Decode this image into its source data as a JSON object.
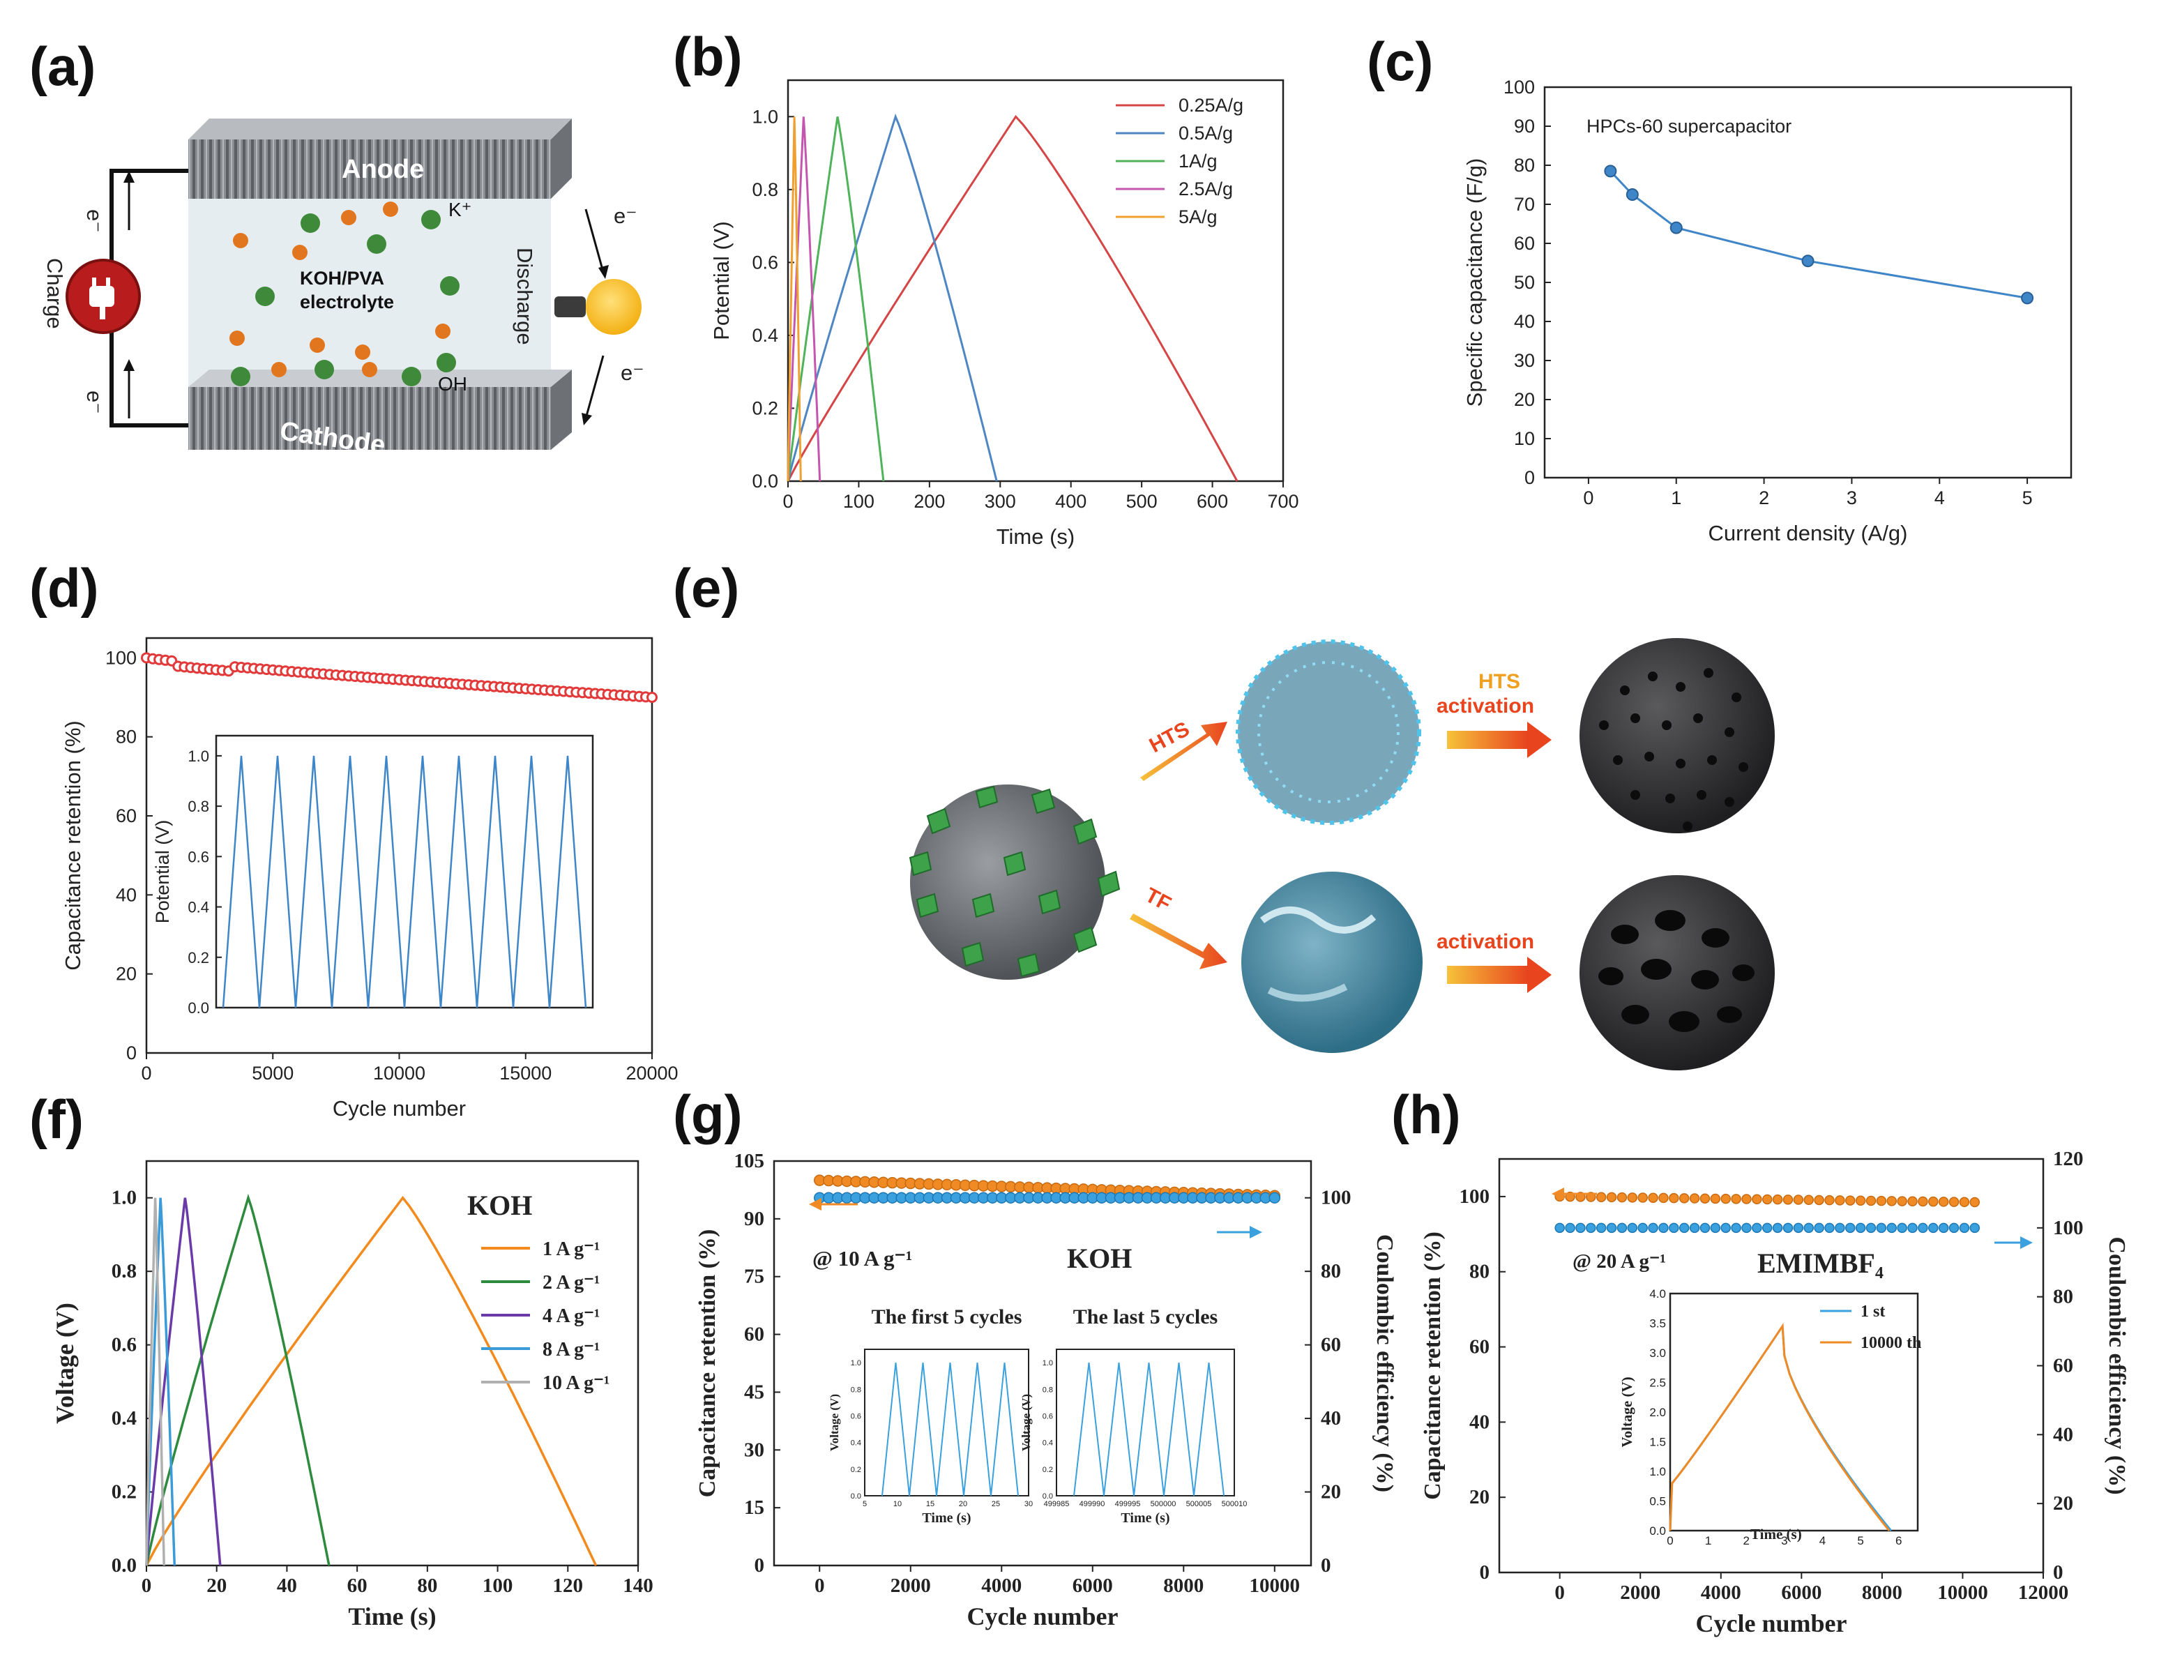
{
  "panel_labels": [
    "(a)",
    "(b)",
    "(c)",
    "(d)",
    "(e)",
    "(f)",
    "(g)",
    "(h)"
  ],
  "colors": {
    "red": "#d64545",
    "blue": "#4e86c4",
    "green": "#4fb35a",
    "magenta": "#c456b0",
    "orange": "#f0a030",
    "f_orange": "#f28a1e",
    "f_green": "#2e8b3e",
    "f_purple": "#6a3aa8",
    "f_blue": "#3b9ad8",
    "f_grey": "#b0b0b0",
    "retention_red": "#e23a3a",
    "line_blue": "#3f86c8",
    "dot_orange": "#f08a24",
    "dot_blue": "#3aa0de"
  },
  "schematic_a": {
    "anode": "Anode",
    "cathode": "Cathode",
    "electrolyte_line1": "KOH/PVA",
    "electrolyte_line2": "electrolyte",
    "k_ion": "K⁺",
    "oh_ion": "OH",
    "charge": "Charge",
    "discharge": "Discharge",
    "electron": "e⁻"
  },
  "schematic_e": {
    "hts_label": "HTS",
    "hts_activation_line1": "HTS",
    "hts_activation_line2": "activation",
    "tf_label": "TF",
    "activation_label": "activation"
  },
  "chart_data": [
    {
      "id": "b",
      "type": "line",
      "xlabel": "Time (s)",
      "ylabel": "Potential (V)",
      "xlim": [
        0,
        700
      ],
      "ylim": [
        0,
        1.1
      ],
      "xticks": [
        "0",
        "100",
        "200",
        "300",
        "400",
        "500",
        "600",
        "700"
      ],
      "yticks": [
        "0.0",
        "0.2",
        "0.4",
        "0.6",
        "0.8",
        "1.0"
      ],
      "legend_position": "top-right",
      "series": [
        {
          "name": "0.25A/g",
          "peak_time": 322,
          "end_time": 635
        },
        {
          "name": "0.5A/g",
          "peak_time": 152,
          "end_time": 295
        },
        {
          "name": "1A/g",
          "peak_time": 70,
          "end_time": 135
        },
        {
          "name": "2.5A/g",
          "peak_time": 22,
          "end_time": 45
        },
        {
          "name": "5A/g",
          "peak_time": 9,
          "end_time": 18
        }
      ]
    },
    {
      "id": "c",
      "type": "line",
      "title": "HPCs-60 supercapacitor",
      "xlabel": "Current density (A/g)",
      "ylabel": "Specific capacitance (F/g)",
      "xlim": [
        -0.5,
        5.5
      ],
      "ylim": [
        0,
        100
      ],
      "xticks": [
        "0",
        "1",
        "2",
        "3",
        "4",
        "5"
      ],
      "yticks": [
        "0",
        "10",
        "20",
        "30",
        "40",
        "50",
        "60",
        "70",
        "80",
        "90",
        "100"
      ],
      "x": [
        0.25,
        0.5,
        1,
        2.5,
        5
      ],
      "y": [
        78.5,
        72.5,
        64,
        55.5,
        46
      ]
    },
    {
      "id": "d",
      "type": "scatter",
      "xlabel": "Cycle number",
      "ylabel": "Capacitance retention (%)",
      "xlim": [
        0,
        20000
      ],
      "ylim": [
        0,
        105
      ],
      "xticks": [
        "0",
        "5000",
        "10000",
        "15000",
        "20000"
      ],
      "yticks": [
        "0",
        "20",
        "40",
        "60",
        "80",
        "100"
      ],
      "start_value": 100,
      "end_value": 90,
      "inset": {
        "ylabel": "Potential (V)",
        "yticks": [
          "0.0",
          "0.2",
          "0.4",
          "0.6",
          "0.8",
          "1.0"
        ],
        "cycles": 10
      }
    },
    {
      "id": "f",
      "type": "line",
      "title": "KOH",
      "xlabel": "Time (s)",
      "ylabel": "Voltage (V)",
      "xlim": [
        0,
        140
      ],
      "ylim": [
        0,
        1.1
      ],
      "xticks": [
        "0",
        "20",
        "40",
        "60",
        "80",
        "100",
        "120",
        "140"
      ],
      "yticks": [
        "0.0",
        "0.2",
        "0.4",
        "0.6",
        "0.8",
        "1.0"
      ],
      "legend_position": "right",
      "series": [
        {
          "name": "1 A g⁻¹",
          "peak_time": 73,
          "end_time": 128
        },
        {
          "name": "2 A g⁻¹",
          "peak_time": 29,
          "end_time": 52
        },
        {
          "name": "4 A g⁻¹",
          "peak_time": 11,
          "end_time": 21
        },
        {
          "name": "8 A g⁻¹",
          "peak_time": 4,
          "end_time": 8
        },
        {
          "name": "10 A g⁻¹",
          "peak_time": 2.5,
          "end_time": 5
        }
      ]
    },
    {
      "id": "g",
      "type": "scatter",
      "title": "KOH",
      "annotation": "@ 10 A g⁻¹",
      "xlabel": "Cycle number",
      "ylabel": "Capacitance retention (%)",
      "y2label": "Coulombic efficiency (%)",
      "xlim": [
        -1000,
        10800
      ],
      "ylim": [
        0,
        105
      ],
      "y2lim": [
        0,
        110
      ],
      "xticks": [
        "0",
        "2000",
        "4000",
        "6000",
        "8000",
        "10000"
      ],
      "yticks": [
        "0",
        "15",
        "30",
        "45",
        "60",
        "75",
        "90",
        "105"
      ],
      "y2ticks": [
        "0",
        "20",
        "40",
        "60",
        "80",
        "100"
      ],
      "retention_start": 100,
      "retention_end": 96,
      "efficiency": 100,
      "inset_left": {
        "title": "The first 5 cycles",
        "xlabel": "Time (s)",
        "ylabel": "Voltage (V)",
        "xticks": [
          "5",
          "10",
          "15",
          "20",
          "25",
          "30"
        ],
        "yticks": [
          "0.0",
          "0.2",
          "0.4",
          "0.6",
          "0.8",
          "1.0"
        ]
      },
      "inset_right": {
        "title": "The last 5 cycles",
        "xlabel": "Time (s)",
        "ylabel": "Voltage (V)",
        "xticks": [
          "499985",
          "499990",
          "499995",
          "500000",
          "500005",
          "500010"
        ],
        "yticks": [
          "0.0",
          "0.2",
          "0.4",
          "0.6",
          "0.8",
          "1.0"
        ]
      }
    },
    {
      "id": "h",
      "type": "scatter",
      "title": "EMIMBF₄",
      "annotation": "@ 20 A g⁻¹",
      "xlabel": "Cycle number",
      "ylabel": "Capacitance retention (%)",
      "y2label": "Coulombic efficiency (%)",
      "xlim": [
        -1500,
        12000
      ],
      "ylim": [
        0,
        110
      ],
      "y2lim": [
        0,
        120
      ],
      "xticks": [
        "0",
        "2000",
        "4000",
        "6000",
        "8000",
        "10000",
        "12000"
      ],
      "yticks": [
        "0",
        "20",
        "40",
        "60",
        "80",
        "100"
      ],
      "y2ticks": [
        "0",
        "20",
        "40",
        "60",
        "80",
        "100",
        "120"
      ],
      "retention_start": 100,
      "retention_end": 98.5,
      "efficiency": 100,
      "inset": {
        "xlabel": "Time (s)",
        "ylabel": "Voltage (V)",
        "xticks": [
          "0",
          "1",
          "2",
          "3",
          "4",
          "5",
          "6"
        ],
        "yticks": [
          "0.0",
          "0.5",
          "1.0",
          "1.5",
          "2.0",
          "2.5",
          "3.0",
          "3.5",
          "4.0"
        ],
        "legend": [
          "1 st",
          "10000 th"
        ]
      }
    }
  ]
}
